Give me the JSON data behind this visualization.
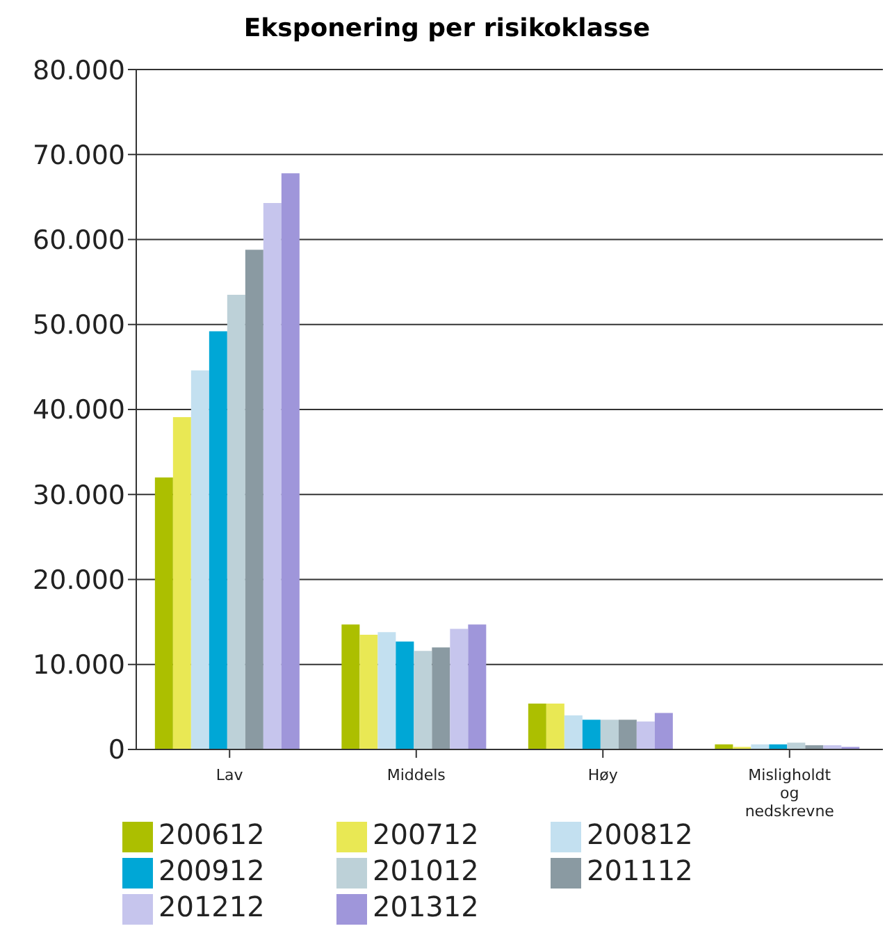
{
  "chart_data": {
    "type": "bar",
    "title": "Eksponering per risikoklasse",
    "categories": [
      "Lav",
      "Middels",
      "Høy",
      "Misligholdt og nedskrevne"
    ],
    "series": [
      {
        "name": "200612",
        "color": "#acbf00",
        "values": [
          32000,
          14700,
          5400,
          600
        ]
      },
      {
        "name": "200712",
        "color": "#e9e854",
        "values": [
          39100,
          13500,
          5400,
          300
        ]
      },
      {
        "name": "200812",
        "color": "#c3e0f0",
        "values": [
          44600,
          13800,
          4000,
          600
        ]
      },
      {
        "name": "200912",
        "color": "#00a7d6",
        "values": [
          49200,
          12700,
          3500,
          600
        ]
      },
      {
        "name": "201012",
        "color": "#bdd1d8",
        "values": [
          53500,
          11600,
          3500,
          800
        ]
      },
      {
        "name": "201112",
        "color": "#8a9aa2",
        "values": [
          58800,
          12000,
          3500,
          500
        ]
      },
      {
        "name": "201212",
        "color": "#c6c5ed",
        "values": [
          64300,
          14200,
          3300,
          500
        ]
      },
      {
        "name": "201312",
        "color": "#9f96da",
        "values": [
          67800,
          14700,
          4300,
          300
        ]
      }
    ],
    "ylim": [
      0,
      80000
    ],
    "yticks": [
      {
        "value": 0,
        "label": "0"
      },
      {
        "value": 10000,
        "label": "10.000"
      },
      {
        "value": 20000,
        "label": "20.000"
      },
      {
        "value": 30000,
        "label": "30.000"
      },
      {
        "value": 40000,
        "label": "40.000"
      },
      {
        "value": 50000,
        "label": "50.000"
      },
      {
        "value": 60000,
        "label": "60.000"
      },
      {
        "value": 70000,
        "label": "70.000"
      },
      {
        "value": 80000,
        "label": "80.000"
      }
    ],
    "grid": "y",
    "legend": "bottom"
  }
}
